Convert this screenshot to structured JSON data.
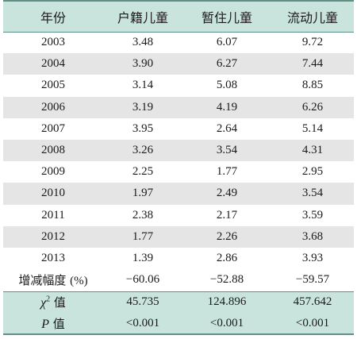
{
  "table": {
    "headers": [
      "年份",
      "户籍儿童",
      "暂住儿童",
      "流动儿童"
    ],
    "rows": [
      {
        "year": "2003",
        "values": [
          "3.48",
          "6.07",
          "9.72"
        ]
      },
      {
        "year": "2004",
        "values": [
          "3.90",
          "6.27",
          "7.44"
        ]
      },
      {
        "year": "2005",
        "values": [
          "3.14",
          "5.08",
          "8.85"
        ]
      },
      {
        "year": "2006",
        "values": [
          "3.19",
          "4.19",
          "6.26"
        ]
      },
      {
        "year": "2007",
        "values": [
          "3.95",
          "2.64",
          "5.14"
        ]
      },
      {
        "year": "2008",
        "values": [
          "3.26",
          "3.54",
          "4.31"
        ]
      },
      {
        "year": "2009",
        "values": [
          "2.25",
          "1.77",
          "2.95"
        ]
      },
      {
        "year": "2010",
        "values": [
          "1.97",
          "2.49",
          "3.54"
        ]
      },
      {
        "year": "2011",
        "values": [
          "2.38",
          "2.17",
          "3.59"
        ]
      },
      {
        "year": "2012",
        "values": [
          "1.77",
          "2.26",
          "3.68"
        ]
      },
      {
        "year": "2013",
        "values": [
          "1.39",
          "2.86",
          "3.93"
        ]
      }
    ],
    "change_row": {
      "label": "增减幅度",
      "unit": "(%)",
      "values": [
        "−60.06",
        "−52.88",
        "−59.57"
      ]
    },
    "chi_row": {
      "symbol": "χ",
      "superscript": "2",
      "suffix": "值",
      "values": [
        "45.735",
        "124.896",
        "457.642"
      ]
    },
    "p_row": {
      "symbol": "P",
      "suffix": "值",
      "values": [
        "<0.001",
        "<0.001",
        "<0.001"
      ]
    },
    "colors": {
      "header_bg": "#c9e4dd",
      "alt_row_bg": "#e5e5e5",
      "rule": "#5f8f86"
    }
  }
}
